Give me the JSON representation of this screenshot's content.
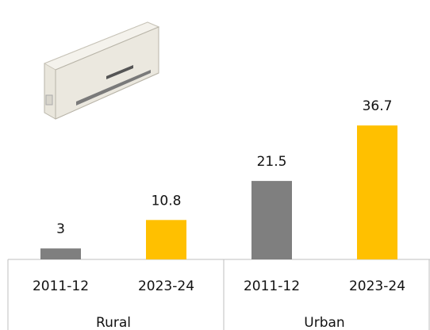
{
  "chart_data": {
    "type": "bar",
    "categories": [
      "2011-12",
      "2023-24",
      "2011-12",
      "2023-24"
    ],
    "groups": [
      "Rural",
      "Urban"
    ],
    "values": [
      3,
      10.8,
      21.5,
      36.7
    ],
    "colors": [
      "#7f7f7f",
      "#ffc000",
      "#7f7f7f",
      "#ffc000"
    ],
    "ylim": [
      0,
      40
    ]
  }
}
